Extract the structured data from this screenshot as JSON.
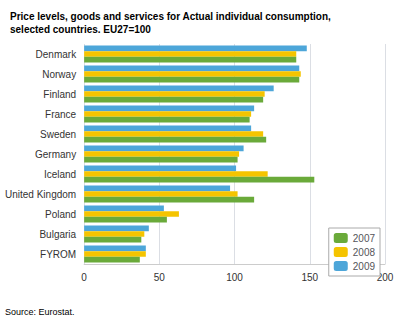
{
  "chart_data": {
    "type": "bar",
    "orientation": "horizontal",
    "title": "Price levels, goods and services for Actual individual consumption,\nselected countries. EU27=100",
    "annotations": [
      "Source: Eurostat."
    ],
    "categories": [
      "FYROM",
      "Bulgaria",
      "Poland",
      "United Kingdom",
      "Iceland",
      "Germany",
      "Sweden",
      "France",
      "Finland",
      "Norway",
      "Denmark"
    ],
    "series": [
      {
        "name": "2009",
        "color": "#4da6d9",
        "values": [
          41,
          43,
          53,
          97,
          101,
          106,
          111,
          113,
          126,
          143,
          148
        ]
      },
      {
        "name": "2008",
        "color": "#f5c400",
        "values": [
          41,
          40,
          63,
          102,
          122,
          103,
          119,
          111,
          120,
          144,
          141
        ]
      },
      {
        "name": "2007",
        "color": "#6aaa3a",
        "values": [
          37,
          38,
          55,
          113,
          153,
          102,
          121,
          110,
          119,
          143,
          141
        ]
      }
    ],
    "xlim": [
      0,
      200
    ],
    "xticks": [
      0,
      50,
      100,
      150,
      200
    ],
    "grid": true,
    "legend": "lower right"
  }
}
